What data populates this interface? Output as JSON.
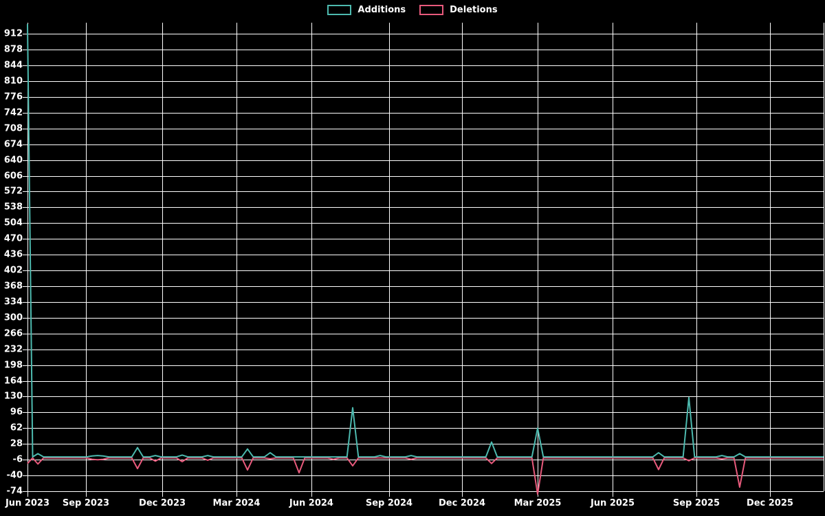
{
  "chart_data": {
    "type": "line",
    "title": "",
    "legend": {
      "position": "top-center",
      "items": [
        {
          "label": "Additions",
          "color": "#4DBAAF"
        },
        {
          "label": "Deletions",
          "color": "#E85A7C"
        }
      ]
    },
    "background_color": "#000000",
    "grid_color": "#FFFFFF",
    "text_color": "#FFFFFF",
    "grid": true,
    "x_axis": {
      "tick_labels": [
        "Jun 2023",
        "Sep 2023",
        "Dec 2023",
        "Mar 2024",
        "Jun 2024",
        "Sep 2024",
        "Dec 2024",
        "Mar 2025",
        "Jun 2025",
        "Sep 2025",
        "Dec 2025"
      ],
      "tick_positions": [
        0,
        0.0734,
        0.1693,
        0.2625,
        0.3566,
        0.4542,
        0.5458,
        0.6408,
        0.7349,
        0.8402,
        0.9326
      ]
    },
    "y_axis": {
      "tick_values": [
        -74,
        -40,
        -6,
        28,
        62,
        96,
        130,
        164,
        198,
        232,
        266,
        300,
        334,
        368,
        402,
        436,
        470,
        504,
        538,
        572,
        606,
        640,
        674,
        708,
        742,
        776,
        810,
        844,
        878,
        912
      ],
      "tick_step": 34,
      "render_min": -74,
      "render_max": 936
    },
    "baseline_value": 0,
    "week_fraction": 0.00717,
    "zero_weeks_note": "All weeks not listed in points have additions 0 and deletions 0; both lines sit on the 0 baseline.",
    "points": [
      {
        "week": "2023-06-01",
        "x_frac": 0.0,
        "additions": 933,
        "deletions": -12
      },
      {
        "week": "2023-06-14",
        "x_frac": 0.013,
        "additions": 7,
        "deletions": -13
      },
      {
        "week": "2023-08-19",
        "x_frac": 0.0812,
        "additions": 2,
        "deletions": -3
      },
      {
        "week": "2023-08-26",
        "x_frac": 0.0881,
        "additions": 3,
        "deletions": -4
      },
      {
        "week": "2023-09-02",
        "x_frac": 0.095,
        "additions": 2,
        "deletions": -3
      },
      {
        "week": "2023-10-14",
        "x_frac": 0.1382,
        "additions": 20,
        "deletions": -23
      },
      {
        "week": "2023-11-05",
        "x_frac": 0.1606,
        "additions": 3,
        "deletions": -7
      },
      {
        "week": "2023-12-08",
        "x_frac": 0.1943,
        "additions": 4,
        "deletions": -8
      },
      {
        "week": "2024-01-08",
        "x_frac": 0.2263,
        "additions": 3,
        "deletions": -5
      },
      {
        "week": "2024-02-26",
        "x_frac": 0.2763,
        "additions": 17,
        "deletions": -26
      },
      {
        "week": "2024-03-25",
        "x_frac": 0.3048,
        "additions": 9,
        "deletions": -2
      },
      {
        "week": "2024-04-29",
        "x_frac": 0.3411,
        "additions": 0,
        "deletions": -32
      },
      {
        "week": "2024-06-10",
        "x_frac": 0.3843,
        "additions": 0,
        "deletions": -3
      },
      {
        "week": "2024-07-04",
        "x_frac": 0.4085,
        "additions": 106,
        "deletions": -17
      },
      {
        "week": "2024-08-07",
        "x_frac": 0.443,
        "additions": 3,
        "deletions": 0
      },
      {
        "week": "2024-09-13",
        "x_frac": 0.4819,
        "additions": 3,
        "deletions": -3
      },
      {
        "week": "2024-12-21",
        "x_frac": 0.5829,
        "additions": 32,
        "deletions": -12
      },
      {
        "week": "2025-02-16",
        "x_frac": 0.6408,
        "additions": 62,
        "deletions": -78
      },
      {
        "week": "2025-07-14",
        "x_frac": 0.7927,
        "additions": 9,
        "deletions": -25
      },
      {
        "week": "2025-08-20",
        "x_frac": 0.8307,
        "additions": 128,
        "deletions": -6
      },
      {
        "week": "2025-09-30",
        "x_frac": 0.8722,
        "additions": 3,
        "deletions": -2
      },
      {
        "week": "2025-10-22",
        "x_frac": 0.8946,
        "additions": 7,
        "deletions": -63
      }
    ]
  }
}
